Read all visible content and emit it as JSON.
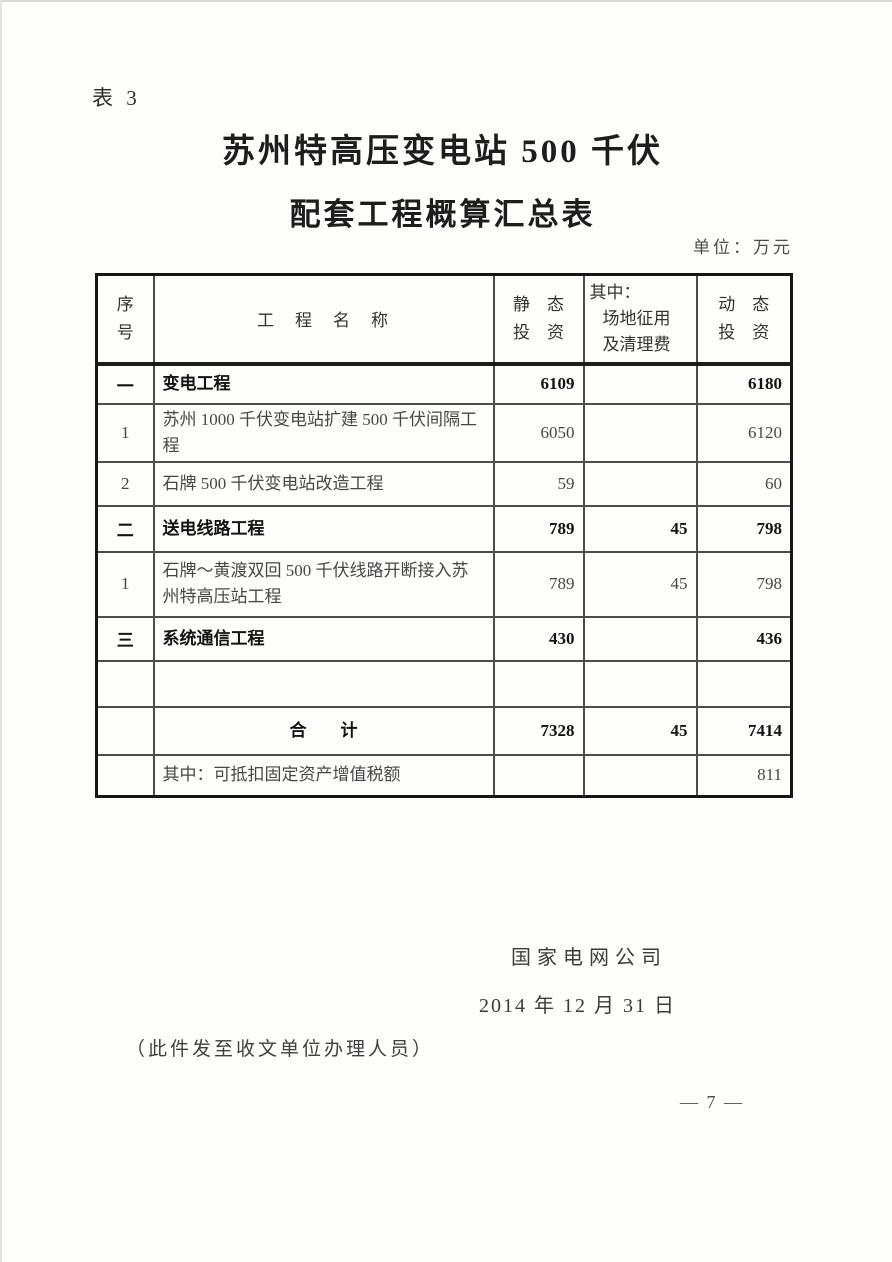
{
  "doc": {
    "table_label": "表 3",
    "title_line1": "苏州特高压变电站 500 千伏",
    "title_line2": "配套工程概算汇总表",
    "unit_note": "单位：万元",
    "signature": "国家电网公司",
    "date": "2014 年 12 月 31 日",
    "distribution_note": "（此件发至收文单位办理人员）",
    "page_number": "— 7 —"
  },
  "table": {
    "col_headers": {
      "seq_lines": [
        "序",
        "号"
      ],
      "name": "工　程　名　称",
      "static_lines": [
        "静　态",
        "投　资"
      ],
      "among_lines": [
        "其中：",
        "场地征用",
        "及清理费"
      ],
      "dynamic_lines": [
        "动　态",
        "投　资"
      ]
    },
    "rows": [
      {
        "seq": "一",
        "name": "变电工程",
        "static_val": "6109",
        "among_val": "",
        "dynamic_val": "6180",
        "bold": true,
        "center": false
      },
      {
        "seq": "1",
        "name": "苏州 1000 千伏变电站扩建 500 千伏间隔工程",
        "static_val": "6050",
        "among_val": "",
        "dynamic_val": "6120",
        "bold": false,
        "center": false
      },
      {
        "seq": "2",
        "name": "石牌 500 千伏变电站改造工程",
        "static_val": "59",
        "among_val": "",
        "dynamic_val": "60",
        "bold": false,
        "center": false
      },
      {
        "seq": "二",
        "name": "送电线路工程",
        "static_val": "789",
        "among_val": "45",
        "dynamic_val": "798",
        "bold": true,
        "center": false
      },
      {
        "seq": "1",
        "name": "石牌～黄渡双回 500 千伏线路开断接入苏州特高压站工程",
        "static_val": "789",
        "among_val": "45",
        "dynamic_val": "798",
        "bold": false,
        "center": false
      },
      {
        "seq": "三",
        "name": "系统通信工程",
        "static_val": "430",
        "among_val": "",
        "dynamic_val": "436",
        "bold": true,
        "center": false
      },
      {
        "seq": "",
        "name": "",
        "static_val": "",
        "among_val": "",
        "dynamic_val": "",
        "bold": false,
        "center": false
      },
      {
        "seq": "",
        "name": "合　　计",
        "static_val": "7328",
        "among_val": "45",
        "dynamic_val": "7414",
        "bold": true,
        "center": true
      },
      {
        "seq": "",
        "name": "其中：可抵扣固定资产增值税额",
        "static_val": "",
        "among_val": "",
        "dynamic_val": "811",
        "bold": false,
        "center": false
      }
    ]
  }
}
